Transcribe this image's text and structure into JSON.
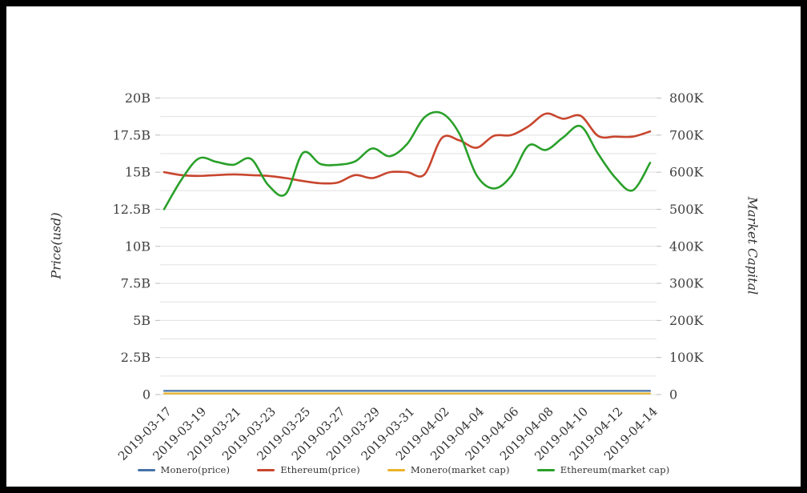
{
  "chart_data": {
    "type": "line",
    "title": "",
    "x_axis": {
      "dates": [
        "2019-03-17",
        "2019-03-18",
        "2019-03-19",
        "2019-03-20",
        "2019-03-21",
        "2019-03-22",
        "2019-03-23",
        "2019-03-24",
        "2019-03-25",
        "2019-03-26",
        "2019-03-27",
        "2019-03-28",
        "2019-03-29",
        "2019-03-30",
        "2019-03-31",
        "2019-04-01",
        "2019-04-02",
        "2019-04-03",
        "2019-04-04",
        "2019-04-05",
        "2019-04-06",
        "2019-04-07",
        "2019-04-08",
        "2019-04-09",
        "2019-04-10",
        "2019-04-11",
        "2019-04-12",
        "2019-04-13",
        "2019-04-14"
      ],
      "tick_labels": [
        "2019-03-17",
        "2019-03-19",
        "2019-03-21",
        "2019-03-23",
        "2019-03-25",
        "2019-03-27",
        "2019-03-29",
        "2019-03-31",
        "2019-04-02",
        "2019-04-04",
        "2019-04-06",
        "2019-04-08",
        "2019-04-10",
        "2019-04-12",
        "2019-04-14"
      ],
      "tick_every_n_points": 2,
      "label_rotation_deg": 45
    },
    "y_axis_left": {
      "title": "Price(usd)",
      "tick_labels": [
        "20B",
        "17.5B",
        "15B",
        "12.5B",
        "10B",
        "7.5B",
        "5B",
        "2.5B",
        "0"
      ],
      "range": [
        0,
        20
      ],
      "range_unit": "B",
      "major_step": 2.5,
      "minor_gridline_step": 1.25
    },
    "y_axis_right": {
      "title": "Market Capital",
      "tick_labels": [
        "800K",
        "700K",
        "600K",
        "500K",
        "400K",
        "300K",
        "200K",
        "100K",
        "0"
      ],
      "range": [
        0,
        800
      ],
      "range_unit": "K",
      "major_step": 100,
      "minor_gridline_step": 50
    },
    "grid": {
      "horizontal_gridlines": true,
      "vertical_gridlines": false,
      "gridline_color": "#e0e0e0"
    },
    "series": [
      {
        "name": "Monero(price)",
        "color": "#4673a7",
        "axis": "left",
        "unit": "B",
        "values_constant": 0.25
      },
      {
        "name": "Ethereum(price)",
        "color": "#c8462e",
        "axis": "left",
        "unit": "B",
        "values": [
          15.0,
          14.8,
          14.75,
          14.8,
          14.85,
          14.8,
          14.75,
          14.6,
          14.4,
          14.25,
          14.3,
          14.8,
          14.6,
          15.0,
          15.0,
          14.85,
          17.3,
          17.15,
          16.65,
          17.45,
          17.5,
          18.1,
          18.95,
          18.6,
          18.8,
          17.45,
          17.4,
          17.4,
          17.75
        ]
      },
      {
        "name": "Monero(market cap)",
        "color": "#e9b32a",
        "axis": "right",
        "unit": "K",
        "values_constant": 3
      },
      {
        "name": "Ethereum(market cap)",
        "color": "#2aa02a",
        "axis": "right",
        "unit": "K",
        "values": [
          500,
          580,
          637,
          628,
          620,
          636,
          565,
          541,
          652,
          622,
          620,
          629,
          664,
          643,
          676,
          748,
          759,
          705,
          592,
          556,
          590,
          672,
          660,
          694,
          724,
          650,
          585,
          551,
          625
        ]
      }
    ],
    "legend": {
      "position": "bottom-center"
    }
  }
}
